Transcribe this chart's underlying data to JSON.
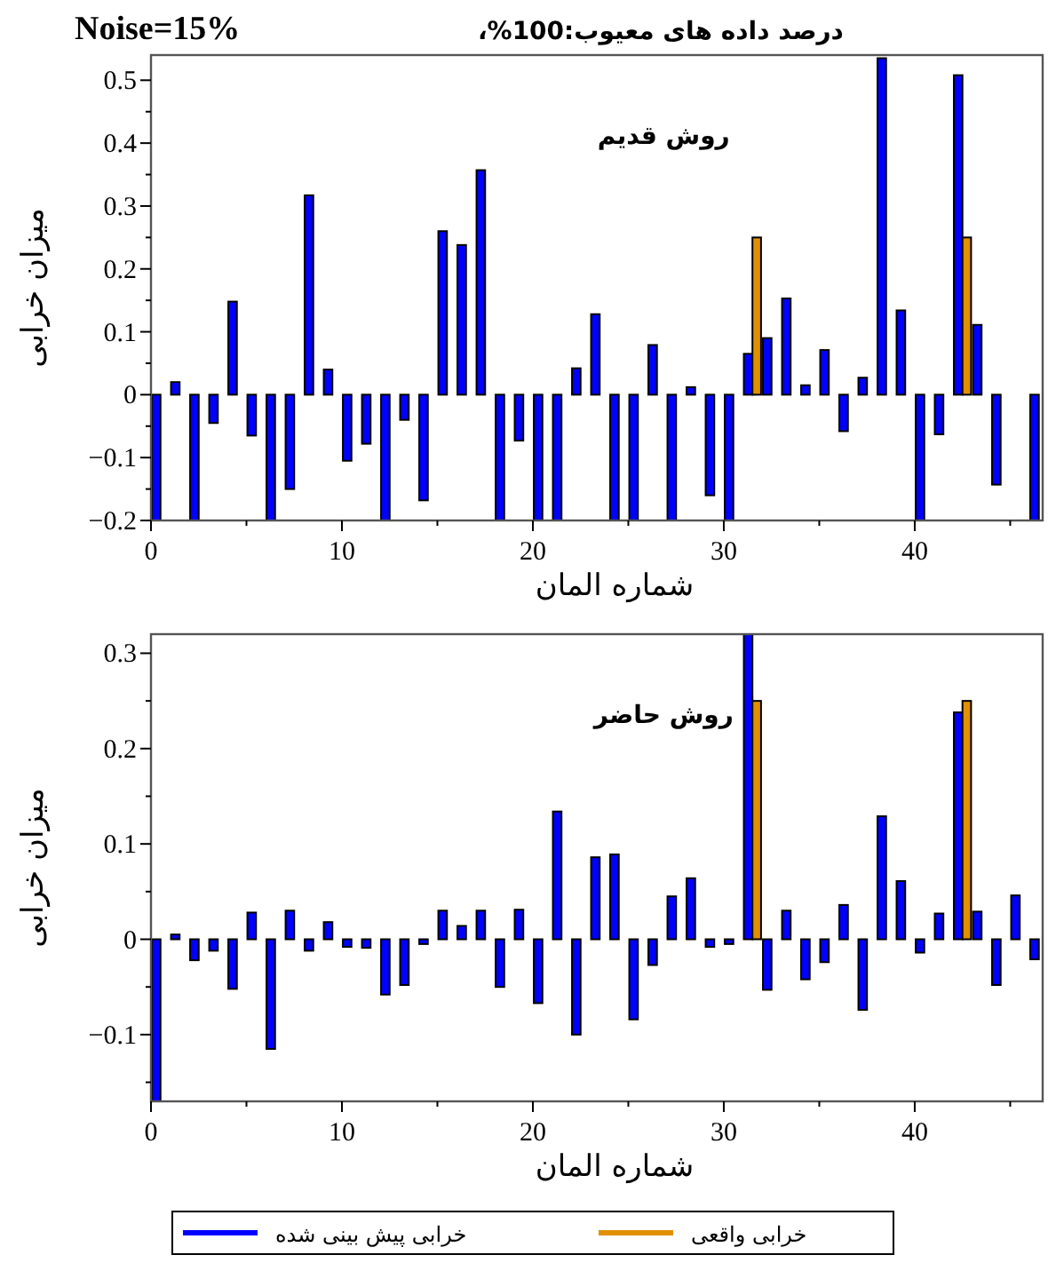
{
  "chart_data": [
    {
      "type": "bar",
      "title": "درصد داده های معیوب:100%،",
      "subtitle": "Noise=15%",
      "xlabel": "شماره المان",
      "ylabel": "میزان خرابی",
      "annotations": [
        "روش قدیم"
      ],
      "x": [
        0.5,
        1.5,
        2.5,
        3.5,
        4.5,
        5.5,
        6.5,
        7.5,
        8.5,
        9.5,
        10.5,
        11.5,
        12.5,
        13.5,
        14.5,
        15.5,
        16.5,
        17.5,
        18.5,
        19.5,
        20.5,
        21.5,
        22.5,
        23.5,
        24.5,
        25.5,
        26.5,
        27.5,
        28.5,
        29.5,
        30.5,
        31.5,
        32.5,
        33.5,
        34.5,
        35.5,
        36.5,
        37.5,
        38.5,
        39.5,
        40.5,
        41.5,
        42.5,
        43.5,
        44.5,
        45.5,
        46.5
      ],
      "series": [
        {
          "color": "#0000ff",
          "values": [
            -0.2,
            0.02,
            -0.2,
            -0.045,
            0.148,
            -0.065,
            -0.2,
            -0.15,
            0.317,
            0.04,
            -0.105,
            -0.078,
            -0.2,
            -0.04,
            -0.168,
            0.26,
            0.238,
            0.357,
            -0.2,
            -0.073,
            -0.2,
            -0.2,
            0.042,
            0.128,
            -0.2,
            -0.2,
            0.079,
            -0.2,
            0.012,
            -0.16,
            -0.2,
            0.065,
            0.09,
            0.153,
            0.015,
            0.071,
            -0.058,
            0.027,
            0.535,
            0.134,
            -0.2,
            -0.063,
            0.508,
            0.111,
            -0.143,
            0,
            -0.2
          ]
        },
        {
          "color": "#e09000",
          "values": [
            0,
            0,
            0,
            0,
            0,
            0,
            0,
            0,
            0,
            0,
            0,
            0,
            0,
            0,
            0,
            0,
            0,
            0,
            0,
            0,
            0,
            0,
            0,
            0,
            0,
            0,
            0,
            0,
            0,
            0,
            0,
            0.25,
            0,
            0,
            0,
            0,
            0,
            0,
            0,
            0,
            0,
            0,
            0.25,
            0,
            0,
            0,
            0
          ]
        }
      ],
      "xlim": [
        0,
        46.7
      ],
      "xticks": [
        0,
        {
          "value": 5,
          "label": null
        },
        10,
        {
          "value": 15,
          "label": null
        },
        20,
        {
          "value": 25,
          "label": null
        },
        30,
        {
          "value": 35,
          "label": null
        },
        40,
        {
          "value": 45,
          "label": null
        }
      ],
      "ylim": [
        -0.2,
        0.54
      ],
      "yticks": [
        -0.2,
        {
          "value": -0.15,
          "label": null
        },
        -0.1,
        {
          "value": -0.05,
          "label": null
        },
        0,
        {
          "value": 0.05,
          "label": null
        },
        0.1,
        {
          "value": 0.15,
          "label": null
        },
        0.2,
        {
          "value": 0.25,
          "label": null
        },
        0.3,
        {
          "value": 0.35,
          "label": null
        },
        0.4,
        {
          "value": 0.45,
          "label": null
        },
        0.5
      ],
      "grid": false,
      "legend": false
    },
    {
      "type": "bar",
      "xlabel": "شماره المان",
      "ylabel": "میزان خرابی",
      "annotations": [
        "روش حاضر"
      ],
      "x": [
        0.5,
        1.5,
        2.5,
        3.5,
        4.5,
        5.5,
        6.5,
        7.5,
        8.5,
        9.5,
        10.5,
        11.5,
        12.5,
        13.5,
        14.5,
        15.5,
        16.5,
        17.5,
        18.5,
        19.5,
        20.5,
        21.5,
        22.5,
        23.5,
        24.5,
        25.5,
        26.5,
        27.5,
        28.5,
        29.5,
        30.5,
        31.5,
        32.5,
        33.5,
        34.5,
        35.5,
        36.5,
        37.5,
        38.5,
        39.5,
        40.5,
        41.5,
        42.5,
        43.5,
        44.5,
        45.5,
        46.5
      ],
      "series": [
        {
          "name": "خرابی پیش بینی شده",
          "color": "#0000ff",
          "values": [
            -0.17,
            0.005,
            -0.022,
            -0.012,
            -0.052,
            0.028,
            -0.115,
            0.03,
            -0.012,
            0.018,
            -0.008,
            -0.009,
            -0.058,
            -0.048,
            -0.005,
            0.03,
            0.014,
            0.03,
            -0.05,
            0.031,
            -0.067,
            0.134,
            -0.1,
            0.086,
            0.089,
            -0.084,
            -0.027,
            0.045,
            0.064,
            -0.008,
            -0.005,
            0.32,
            -0.053,
            0.03,
            -0.042,
            -0.024,
            0.036,
            -0.074,
            0.129,
            0.061,
            -0.014,
            0.027,
            0.238,
            0.029,
            -0.048,
            0.046,
            -0.021
          ]
        },
        {
          "name": "خرابی واقعی",
          "color": "#e09000",
          "values": [
            0,
            0,
            0,
            0,
            0,
            0,
            0,
            0,
            0,
            0,
            0,
            0,
            0,
            0,
            0,
            0,
            0,
            0,
            0,
            0,
            0,
            0,
            0,
            0,
            0,
            0,
            0,
            0,
            0,
            0,
            0,
            0.25,
            0,
            0,
            0,
            0,
            0,
            0,
            0,
            0,
            0,
            0,
            0.25,
            0,
            0,
            0,
            0
          ]
        }
      ],
      "xlim": [
        0,
        46.7
      ],
      "xticks": [
        0,
        {
          "value": 5,
          "label": null
        },
        10,
        {
          "value": 15,
          "label": null
        },
        20,
        {
          "value": 25,
          "label": null
        },
        30,
        {
          "value": 35,
          "label": null
        },
        40,
        {
          "value": 45,
          "label": null
        }
      ],
      "ylim": [
        -0.17,
        0.32
      ],
      "yticks": [
        {
          "value": -0.15,
          "label": null
        },
        -0.1,
        {
          "value": -0.05,
          "label": null
        },
        0,
        {
          "value": 0.05,
          "label": null
        },
        0.1,
        {
          "value": 0.15,
          "label": null
        },
        0.2,
        {
          "value": 0.25,
          "label": null
        },
        0.3
      ],
      "grid": false,
      "legend": "bottom"
    }
  ]
}
